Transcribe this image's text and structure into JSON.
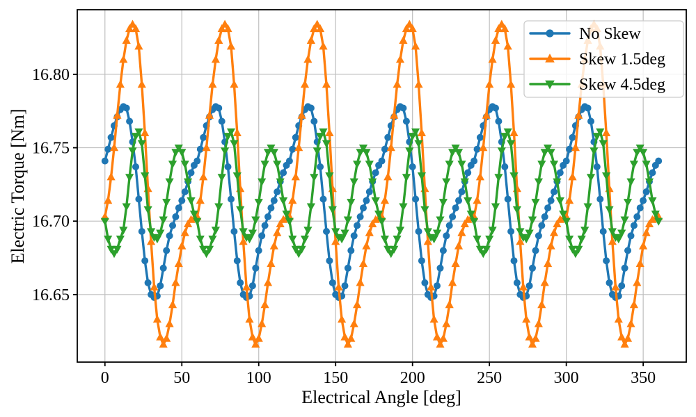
{
  "chart_data": {
    "type": "line",
    "title": "",
    "xlabel": "Electrical Angle [deg]",
    "ylabel": "Electric Torque [Nm]",
    "xlim": [
      -18,
      378
    ],
    "ylim": [
      16.604,
      16.844
    ],
    "x_ticks": [
      0,
      50,
      100,
      150,
      200,
      250,
      300,
      350
    ],
    "x_tick_labels": [
      "0",
      "50",
      "100",
      "150",
      "200",
      "250",
      "300",
      "350"
    ],
    "y_ticks": [
      16.65,
      16.7,
      16.75,
      16.8
    ],
    "y_tick_labels": [
      "16.65",
      "16.70",
      "16.75",
      "16.80"
    ],
    "grid": true,
    "grid_color": "#bfbfbf",
    "legend_position": "upper right",
    "x_start_deg": 0,
    "x_step_deg": 2,
    "x_end_deg": 360,
    "period_deg": 60,
    "num_periods": 6,
    "sampling_note": "Each series is periodic: the 30 period_values (sampled every 2 deg over one 60-deg period) repeat 6 times from 0 to 360 deg; the final point at 360 deg equals the value at 0 deg.",
    "series": [
      {
        "name": "No Skew",
        "color": "#1f77b4",
        "marker": "circle",
        "peak": 16.778,
        "min": 16.648,
        "period_values": [
          16.741,
          16.749,
          16.757,
          16.765,
          16.771,
          16.776,
          16.778,
          16.777,
          16.768,
          16.754,
          16.737,
          16.715,
          16.693,
          16.673,
          16.658,
          16.65,
          16.648,
          16.649,
          16.656,
          16.668,
          16.68,
          16.69,
          16.697,
          16.703,
          16.709,
          16.714,
          16.72,
          16.727,
          16.733,
          16.738
        ]
      },
      {
        "name": "Skew 1.5deg",
        "color": "#ff7f0e",
        "marker": "triangle-up",
        "peak": 16.834,
        "min": 16.616,
        "period_values": [
          16.703,
          16.714,
          16.73,
          16.75,
          16.772,
          16.793,
          16.81,
          16.823,
          16.831,
          16.834,
          16.831,
          16.819,
          16.793,
          16.76,
          16.722,
          16.686,
          16.655,
          16.633,
          16.621,
          16.616,
          16.62,
          16.63,
          16.643,
          16.658,
          16.671,
          16.683,
          16.692,
          16.698,
          16.701,
          16.702
        ]
      },
      {
        "name": "Skew 4.5deg",
        "color": "#2ca02c",
        "marker": "triangle-down",
        "peak": 16.761,
        "min": 16.678,
        "period_values": [
          16.7,
          16.688,
          16.681,
          16.678,
          16.681,
          16.688,
          16.694,
          16.71,
          16.73,
          16.748,
          16.758,
          16.761,
          16.753,
          16.731,
          16.708,
          16.693,
          16.689,
          16.688,
          16.692,
          16.701,
          16.713,
          16.727,
          16.739,
          16.747,
          16.75,
          16.747,
          16.739,
          16.727,
          16.714,
          16.705
        ]
      }
    ]
  }
}
